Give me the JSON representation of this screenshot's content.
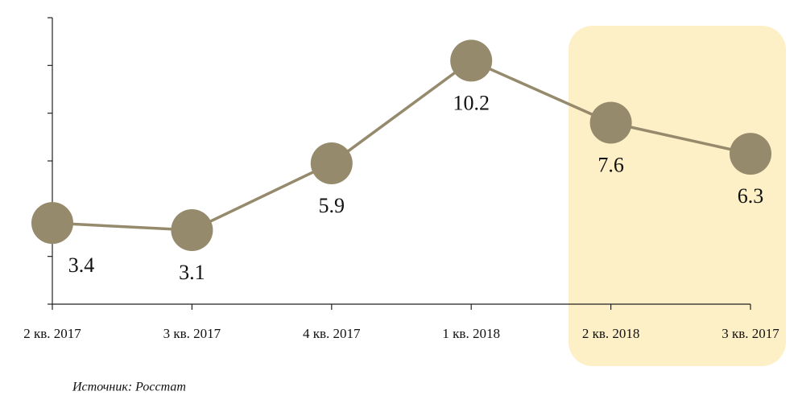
{
  "chart_data": {
    "type": "line",
    "categories": [
      "2 кв. 2017",
      "3 кв. 2017",
      "4 кв. 2017",
      "1 кв. 2018",
      "2 кв. 2018",
      "3 кв. 2017"
    ],
    "series": [
      {
        "name": null,
        "color": "#968a6c",
        "values": [
          3.4,
          3.1,
          5.9,
          10.2,
          7.6,
          6.3
        ]
      }
    ],
    "ylim": [
      0,
      12
    ],
    "yticks": [
      0,
      2,
      4,
      6,
      8,
      10,
      12
    ],
    "source": "Источник: Росстат"
  }
}
